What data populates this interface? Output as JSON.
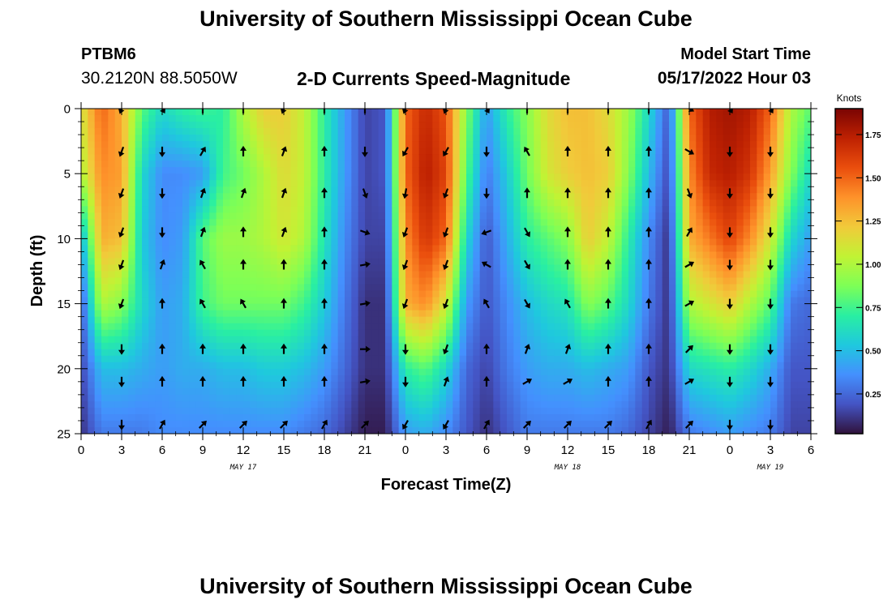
{
  "header": {
    "title": "University of Southern Mississippi Ocean Cube",
    "station": "PTBM6",
    "coords": "30.2120N  88.5050W",
    "chart_title": "2-D Currents Speed-Magnitude",
    "model_label": "Model Start Time",
    "model_time": "05/17/2022 Hour 03"
  },
  "footer": {
    "title": "University of Southern Mississippi Ocean Cube"
  },
  "chart_data": {
    "type": "heatmap",
    "title": "2-D Currents Speed-Magnitude",
    "xlabel": "Forecast Time(Z)",
    "ylabel": "Depth (ft)",
    "x_tick_labels": [
      "0",
      "3",
      "6",
      "9",
      "12",
      "15",
      "18",
      "21",
      "0",
      "3",
      "6",
      "9",
      "12",
      "15",
      "18",
      "21",
      "0",
      "3",
      "6"
    ],
    "date_labels": [
      {
        "label": "MAY 17",
        "hour": 12
      },
      {
        "label": "MAY 18",
        "hour": 36
      },
      {
        "label": "MAY 19",
        "hour": 51
      }
    ],
    "x_range_hours": [
      0,
      54
    ],
    "y_ticks": [
      0,
      5,
      10,
      15,
      20,
      25
    ],
    "ylim": [
      0,
      25
    ],
    "y_inverted": true,
    "colorbar": {
      "label": "Knots",
      "ticks": [
        "0.25",
        "0.50",
        "0.75",
        "1.00",
        "1.25",
        "1.50",
        "1.75"
      ],
      "range": [
        0.02,
        1.9
      ]
    },
    "colormap": [
      "#30123b",
      "#4454c4",
      "#4490fe",
      "#1fc8de",
      "#29efa2",
      "#7dff56",
      "#c1f334",
      "#f1ca3a",
      "#fe922a",
      "#ea4e0d",
      "#be2102",
      "#7a0403"
    ],
    "speed_profile": {
      "hours": [
        0,
        1.5,
        3,
        4.5,
        6,
        7.5,
        9,
        10.5,
        12,
        13.5,
        15,
        16.5,
        18,
        19.5,
        21,
        22.5,
        24,
        25.5,
        27,
        28.5,
        30,
        31.5,
        33,
        34.5,
        36,
        37.5,
        39,
        40.5,
        42,
        43.5,
        45,
        46.5,
        48,
        49.5,
        51,
        52.5,
        54
      ],
      "depths": [
        0,
        5,
        10,
        15,
        20,
        25
      ],
      "knots": [
        [
          1.1,
          1.0,
          0.45,
          0.2,
          0.15,
          0.1
        ],
        [
          1.5,
          1.4,
          1.3,
          1.0,
          0.5,
          0.3
        ],
        [
          1.3,
          1.35,
          1.25,
          0.9,
          0.5,
          0.3
        ],
        [
          0.8,
          0.6,
          0.55,
          0.6,
          0.45,
          0.3
        ],
        [
          0.6,
          0.35,
          0.35,
          0.4,
          0.4,
          0.35
        ],
        [
          0.7,
          0.35,
          0.4,
          0.45,
          0.45,
          0.35
        ],
        [
          0.75,
          0.4,
          0.8,
          0.75,
          0.45,
          0.35
        ],
        [
          0.7,
          0.75,
          0.95,
          0.85,
          0.5,
          0.35
        ],
        [
          1.0,
          0.85,
          0.95,
          0.85,
          0.5,
          0.35
        ],
        [
          1.2,
          1.0,
          1.0,
          0.85,
          0.55,
          0.35
        ],
        [
          1.2,
          1.15,
          1.1,
          0.85,
          0.55,
          0.35
        ],
        [
          1.05,
          1.05,
          1.0,
          0.75,
          0.5,
          0.3
        ],
        [
          0.7,
          0.7,
          0.65,
          0.55,
          0.4,
          0.25
        ],
        [
          0.4,
          0.4,
          0.35,
          0.3,
          0.25,
          0.15
        ],
        [
          0.15,
          0.15,
          0.15,
          0.1,
          0.1,
          0.05
        ],
        [
          0.2,
          0.2,
          0.15,
          0.1,
          0.1,
          0.05
        ],
        [
          1.5,
          1.5,
          1.4,
          1.3,
          0.7,
          0.4
        ],
        [
          1.7,
          1.75,
          1.65,
          1.4,
          0.8,
          0.45
        ],
        [
          1.55,
          1.6,
          1.5,
          1.1,
          0.6,
          0.35
        ],
        [
          0.9,
          0.8,
          0.6,
          0.4,
          0.25,
          0.2
        ],
        [
          0.4,
          0.3,
          0.2,
          0.2,
          0.15,
          0.1
        ],
        [
          0.7,
          0.55,
          0.45,
          0.35,
          0.3,
          0.2
        ],
        [
          0.9,
          0.85,
          0.7,
          0.5,
          0.4,
          0.3
        ],
        [
          1.15,
          1.1,
          0.8,
          0.6,
          0.45,
          0.3
        ],
        [
          1.25,
          1.2,
          0.9,
          0.65,
          0.45,
          0.3
        ],
        [
          1.25,
          1.25,
          1.2,
          0.9,
          0.5,
          0.3
        ],
        [
          1.15,
          1.2,
          1.05,
          0.8,
          0.45,
          0.3
        ],
        [
          0.95,
          0.9,
          0.7,
          0.6,
          0.4,
          0.25
        ],
        [
          0.6,
          0.5,
          0.35,
          0.3,
          0.2,
          0.15
        ],
        [
          0.2,
          0.15,
          0.1,
          0.1,
          0.1,
          0.05
        ],
        [
          1.5,
          1.4,
          1.3,
          1.0,
          0.6,
          0.3
        ],
        [
          1.75,
          1.7,
          1.45,
          1.1,
          0.65,
          0.35
        ],
        [
          1.8,
          1.75,
          1.6,
          1.2,
          0.7,
          0.4
        ],
        [
          1.75,
          1.65,
          1.4,
          1.0,
          0.6,
          0.35
        ],
        [
          1.5,
          1.35,
          1.1,
          0.8,
          0.45,
          0.3
        ],
        [
          1.0,
          0.9,
          0.6,
          0.3,
          0.2,
          0.15
        ],
        [
          0.8,
          0.6,
          0.4,
          0.25,
          0.2,
          0.15
        ]
      ]
    },
    "vector_grid": {
      "hours": [
        3,
        6,
        9,
        12,
        15,
        18,
        21,
        24,
        27,
        30,
        33,
        36,
        39,
        42,
        45,
        48,
        51
      ],
      "depths": [
        0,
        3.3,
        6.5,
        9.5,
        12,
        15,
        18.5,
        21,
        24.3
      ],
      "directions_deg": [
        [
          200,
          150,
          0,
          0,
          200,
          0,
          0,
          200,
          200,
          150,
          0,
          0,
          0,
          0,
          120,
          150,
          150
        ],
        [
          200,
          180,
          30,
          0,
          20,
          0,
          180,
          210,
          210,
          180,
          330,
          0,
          0,
          0,
          120,
          180,
          180
        ],
        [
          200,
          180,
          20,
          20,
          20,
          0,
          160,
          190,
          200,
          180,
          0,
          0,
          0,
          0,
          160,
          180,
          180
        ],
        [
          200,
          180,
          20,
          0,
          20,
          0,
          110,
          200,
          200,
          250,
          150,
          0,
          0,
          0,
          30,
          180,
          180
        ],
        [
          200,
          20,
          330,
          0,
          0,
          0,
          80,
          200,
          200,
          300,
          150,
          0,
          0,
          0,
          60,
          180,
          180
        ],
        [
          200,
          0,
          330,
          330,
          0,
          0,
          80,
          200,
          200,
          330,
          150,
          330,
          0,
          0,
          60,
          180,
          180
        ],
        [
          180,
          0,
          0,
          0,
          0,
          0,
          90,
          180,
          200,
          0,
          20,
          20,
          0,
          0,
          45,
          180,
          180
        ],
        [
          180,
          0,
          0,
          0,
          0,
          0,
          80,
          180,
          20,
          0,
          60,
          60,
          0,
          0,
          60,
          180,
          180
        ],
        [
          180,
          30,
          45,
          45,
          45,
          30,
          45,
          210,
          210,
          30,
          45,
          45,
          45,
          30,
          45,
          180,
          180
        ]
      ]
    }
  }
}
